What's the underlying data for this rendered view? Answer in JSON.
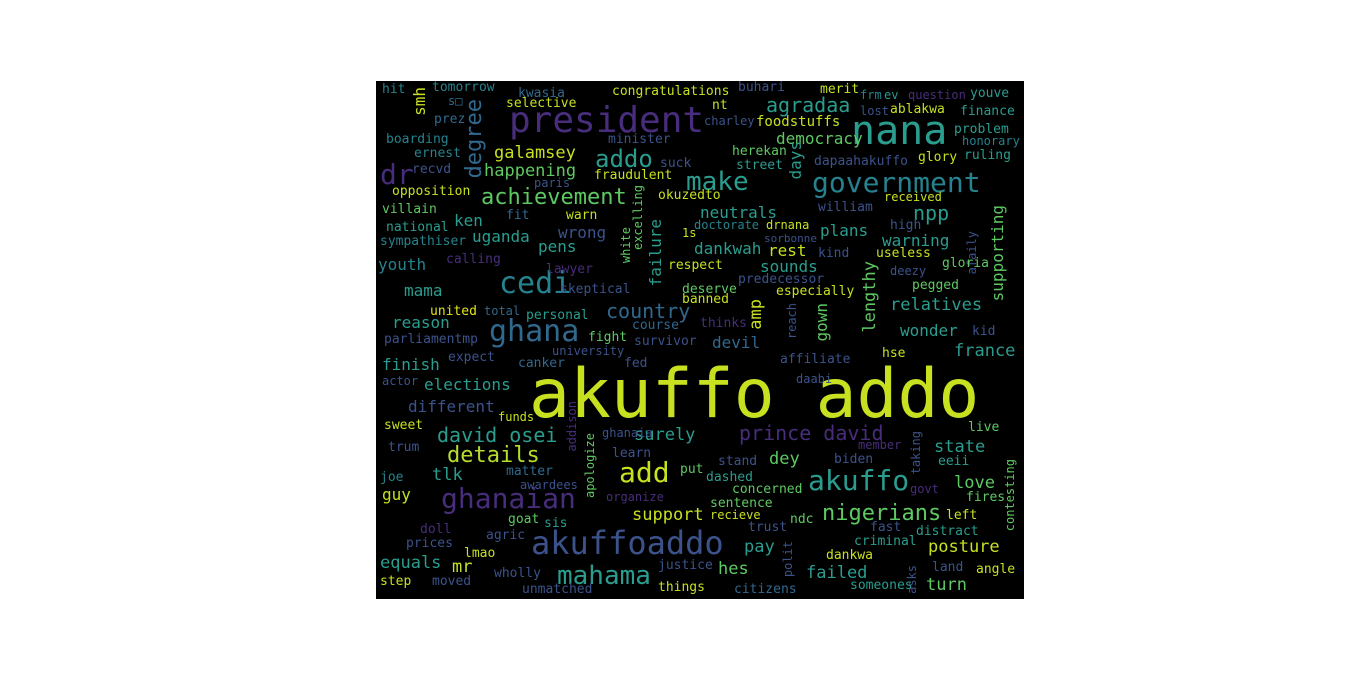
{
  "palette": {
    "yellow": "#c7e020",
    "lime": "#b5de2b",
    "green": "#5ec962",
    "teal": "#2a9d8f",
    "tealblue": "#21918c",
    "blue": "#31688e",
    "dblue": "#3b528b",
    "purple": "#472d7b",
    "dpurple": "#440154",
    "lblue": "#26828e",
    "mint": "#35b779",
    "gold": "#e2e418"
  },
  "words": {
    "akuffo_addo": "akuffo addo",
    "nana": "nana",
    "president": "president",
    "government": "government",
    "cedi": "cedi",
    "ghana": "ghana",
    "ghanaian": "ghanaian",
    "akuffoaddo": "akuffoaddo",
    "mahama": "mahama",
    "akuffo": "akuffo",
    "add": "add",
    "addo": "addo",
    "make": "make",
    "dr": "dr",
    "achievement": "achievement",
    "degree": "degree",
    "prince_david": "prince david",
    "david_osei": "david osei",
    "details": "details",
    "nigerians": "nigerians",
    "agradaa": "agradaa",
    "democracy": "democracy",
    "galamsey": "galamsey",
    "happening": "happening",
    "npp": "npp",
    "country": "country",
    "surely": "surely",
    "support": "support",
    "posture": "posture",
    "failed": "failed",
    "turn": "turn",
    "pay": "pay",
    "hes": "hes",
    "mr": "mr",
    "equals": "equals",
    "dey": "dey",
    "love": "love",
    "state": "state",
    "france": "france",
    "wonder": "wonder",
    "relatives": "relatives",
    "supporting": "supporting",
    "lengthy": "lengthy",
    "gown": "gown",
    "amp": "amp",
    "devil": "devil",
    "different": "different",
    "elections": "elections",
    "finish": "finish",
    "reason": "reason",
    "mama": "mama",
    "youth": "youth",
    "tlk": "tlk",
    "guy": "guy",
    "ken": "ken",
    "uganda": "uganda",
    "wrong": "wrong",
    "pens": "pens",
    "neutrals": "neutrals",
    "dankwah": "dankwah",
    "rest": "rest",
    "plans": "plans",
    "warning": "warning",
    "sounds": "sounds",
    "days": "days",
    "failure": "failure",
    "smh": "smh",
    "hit": "hit",
    "tomorrow": "tomorrow",
    "kwasia": "kwasia",
    "congratulations": "congratulations",
    "buhari": "buhari",
    "merit": "merit",
    "frm": "frm",
    "ev": "ev",
    "question": "question",
    "youve": "youve",
    "lost": "lost",
    "ablakwa": "ablakwa",
    "finance": "finance",
    "selective": "selective",
    "nt": "nt",
    "prez": "prez",
    "s_sym": "s□",
    "charley": "charley",
    "foodstuffs": "foodstuffs",
    "problem": "problem",
    "honorary": "honorary",
    "boarding": "boarding",
    "minister": "minister",
    "herekan": "herekan",
    "glory": "glory",
    "ruling": "ruling",
    "ernest": "ernest",
    "suck": "suck",
    "dapaahakuffo": "dapaahakuffo",
    "street": "street",
    "recvd": "recvd",
    "fraudulent": "fraudulent",
    "paris": "paris",
    "opposition": "opposition",
    "received": "received",
    "okuzedto": "okuzedto",
    "villain": "villain",
    "fit": "fit",
    "warn": "warn",
    "excelling": "excelling",
    "william": "william",
    "national": "national",
    "doctorate": "doctorate",
    "drnana": "drnana",
    "high": "high",
    "sympathiser": "sympathiser",
    "white": "white",
    "1s": "1s",
    "sorbonne": "sorbonne",
    "afaily": "afaily",
    "calling": "calling",
    "kind": "kind",
    "useless": "useless",
    "respect": "respect",
    "deezy": "deezy",
    "lawyer": "lawyer",
    "predecessor": "predecessor",
    "gloria": "gloria",
    "skeptical": "skeptical",
    "deserve": "deserve",
    "especially": "especially",
    "pegged": "pegged",
    "banned": "banned",
    "united": "united",
    "total": "total",
    "personal": "personal",
    "course": "course",
    "thinks": "thinks",
    "reach": "reach",
    "kid": "kid",
    "parliamentmp": "parliamentmp",
    "fight": "fight",
    "survivor": "survivor",
    "university": "university",
    "expect": "expect",
    "canker": "canker",
    "fed": "fed",
    "affiliate": "affiliate",
    "hse": "hse",
    "actor": "actor",
    "daabi": "daabi",
    "funds": "funds",
    "addison": "addison",
    "sweet": "sweet",
    "trum": "trum",
    "apologize": "apologize",
    "ghanaia": "ghanaia",
    "learn": "learn",
    "member": "member",
    "live": "live",
    "biden": "biden",
    "taking": "taking",
    "eeii": "eeii",
    "joe": "joe",
    "matter": "matter",
    "awardees": "awardees",
    "put": "put",
    "stand": "stand",
    "dashed": "dashed",
    "concerned": "concerned",
    "govt": "govt",
    "fires": "fires",
    "organize": "organize",
    "contesting": "contesting",
    "sentence": "sentence",
    "doll": "doll",
    "goat": "goat",
    "sis": "sis",
    "recieve": "recieve",
    "trust": "trust",
    "ndc": "ndc",
    "fast": "fast",
    "distract": "distract",
    "left": "left",
    "agric": "agric",
    "criminal": "criminal",
    "prices": "prices",
    "lmao": "lmao",
    "polit": "polit",
    "dankwa": "dankwa",
    "wholly": "wholly",
    "justice": "justice",
    "land": "land",
    "angle": "angle",
    "step": "step",
    "moved": "moved",
    "things": "things",
    "someones": "someones",
    "asks": "asks",
    "unmatched": "unmatched",
    "citizens": "citizens"
  }
}
